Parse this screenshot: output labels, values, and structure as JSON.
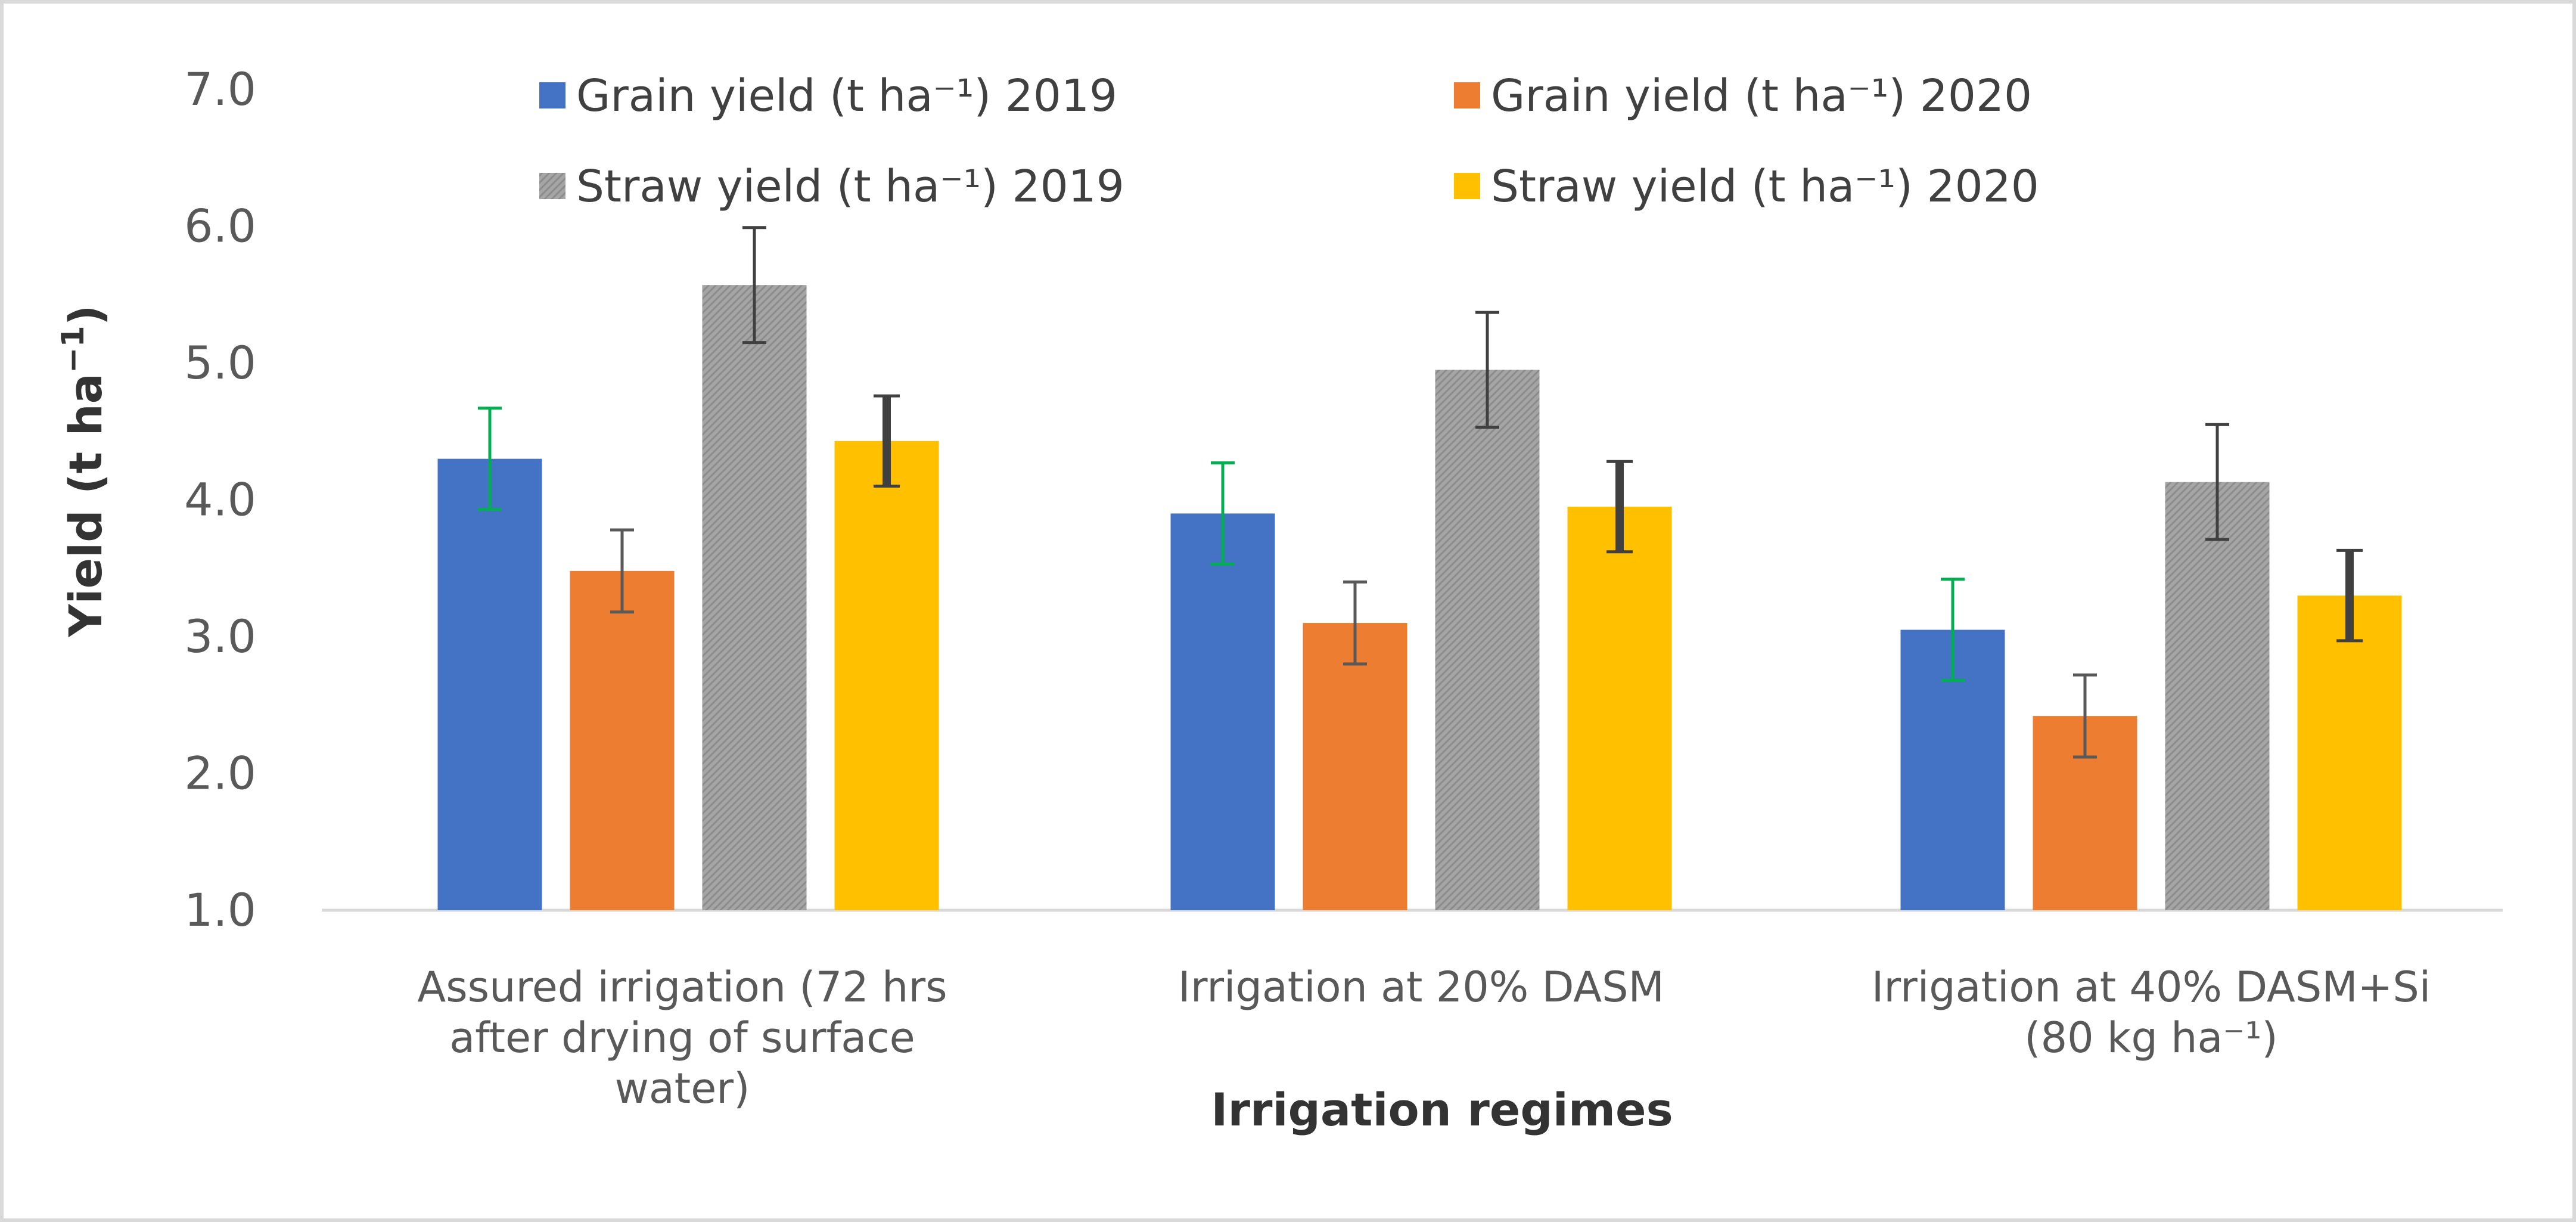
{
  "chart_data": {
    "type": "bar",
    "xlabel": "Irrigation regimes",
    "ylabel": {
      "main": "Yield (t ha",
      "sup": "−1",
      "end": ")"
    },
    "ylim": [
      1.0,
      7.0
    ],
    "yticks": [
      "1.0",
      "2.0",
      "3.0",
      "4.0",
      "5.0",
      "6.0",
      "7.0"
    ],
    "categories": [
      [
        "Assured irrigation (72 hrs",
        "after drying of surface",
        "water)"
      ],
      [
        "Irrigation at 20% DASM"
      ],
      [
        "Irrigation at 40% DASM+Si",
        "(80 kg ha⁻¹)"
      ]
    ],
    "grid": false,
    "legend_position": "top",
    "series": [
      {
        "name": "Grain yield (t ha⁻¹) 2019",
        "color": "#4472C4",
        "error_color": "#00B050",
        "values": [
          4.3,
          3.9,
          3.05
        ],
        "errors": [
          0.37,
          0.37,
          0.37
        ]
      },
      {
        "name": "Grain yield (t ha⁻¹) 2020",
        "color": "#ED7D31",
        "error_color": "#595959",
        "values": [
          3.48,
          3.1,
          2.42
        ],
        "errors": [
          0.3,
          0.3,
          0.3
        ]
      },
      {
        "name": "Straw yield (t ha⁻¹) 2019",
        "color": "#A5A5A5",
        "error_color": "#404040",
        "values": [
          5.57,
          4.95,
          4.13
        ],
        "errors": [
          0.42,
          0.42,
          0.42
        ]
      },
      {
        "name": "Straw yield (t ha⁻¹) 2020",
        "color": "#FFC000",
        "error_color": "#404040",
        "values": [
          4.43,
          3.95,
          3.3
        ],
        "errors": [
          0.33,
          0.33,
          0.33
        ]
      }
    ]
  }
}
